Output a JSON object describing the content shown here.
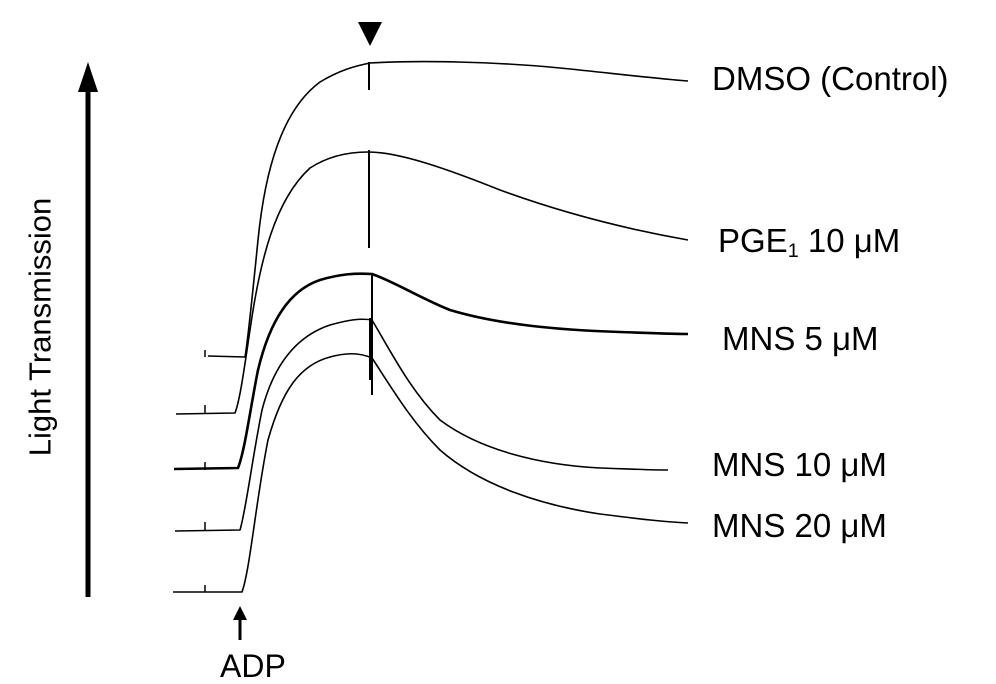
{
  "chart_data": {
    "type": "line",
    "title": "",
    "ylabel": "Light Transmission",
    "xlabel": "",
    "stimulus_marker": "ADP",
    "series": [
      {
        "name": "DMSO (Control)",
        "name_parts": [
          "DMSO (Control)",
          ""
        ],
        "thick": false
      },
      {
        "name": "PGE1 10 μM",
        "name_parts": [
          "PGE",
          "1",
          " 10 μM"
        ],
        "thick": false
      },
      {
        "name": "MNS 5 μM",
        "name_parts": [
          "MNS 5 μM",
          ""
        ],
        "thick": true
      },
      {
        "name": "MNS 10 μM",
        "name_parts": [
          "MNS 10 μM",
          ""
        ],
        "thick": false
      },
      {
        "name": "MNS 20 μM",
        "name_parts": [
          "MNS 20 μM",
          ""
        ],
        "thick": false
      }
    ]
  }
}
